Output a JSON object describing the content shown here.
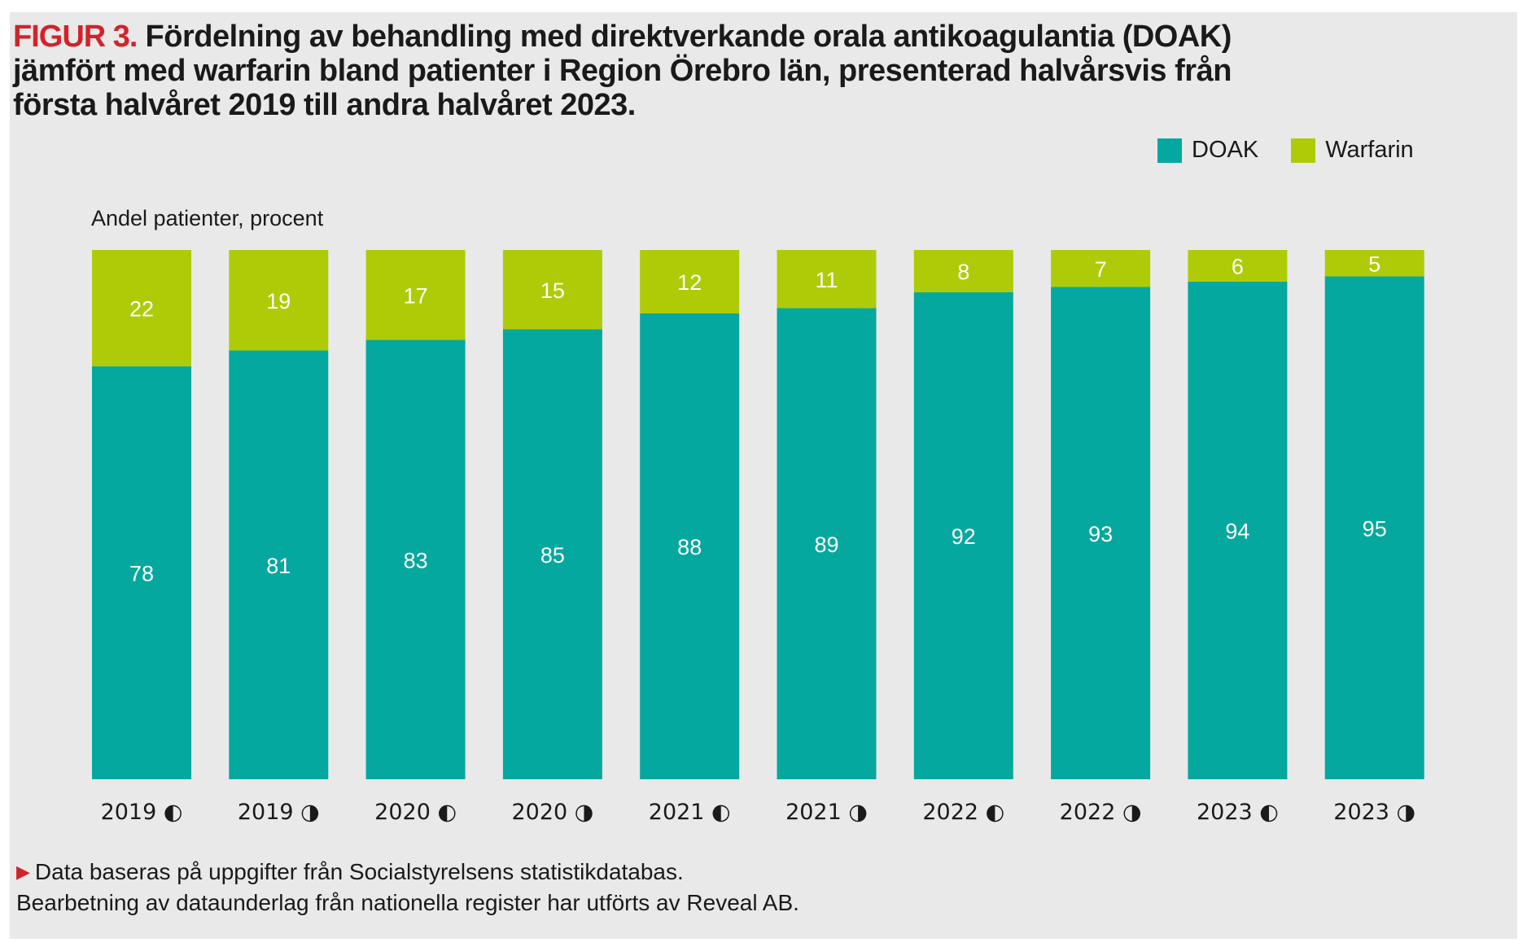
{
  "figure": {
    "label": "FIGUR 3.",
    "title": "Fördelning av behandling med direktverkande orala antikoagulantia (DOAK) jämfört med warfarin bland patienter i Region Örebro län, presenterad halvårsvis från första halvåret 2019 till andra halvåret 2023."
  },
  "legend": {
    "doak": "DOAK",
    "warfarin": "Warfarin"
  },
  "colors": {
    "doak": "#05a89e",
    "warfarin": "#afcb08",
    "label_inside": "#ffffff",
    "axis_text": "#1a1a1a"
  },
  "chart_data": {
    "type": "bar",
    "stacked": true,
    "ylabel": "Andel patienter, procent",
    "ylim": [
      0,
      100
    ],
    "grid": false,
    "legend_position": "top-right",
    "categories": [
      "2019 ◐",
      "2019 ◑",
      "2020 ◐",
      "2020 ◑",
      "2021 ◐",
      "2021 ◑",
      "2022 ◐",
      "2022 ◑",
      "2023 ◐",
      "2023 ◑"
    ],
    "series": [
      {
        "name": "DOAK",
        "values": [
          78,
          81,
          83,
          85,
          88,
          89,
          92,
          93,
          94,
          95
        ]
      },
      {
        "name": "Warfarin",
        "values": [
          22,
          19,
          17,
          15,
          12,
          11,
          8,
          7,
          6,
          5
        ]
      }
    ]
  },
  "footnote": {
    "line1": "Data baseras på uppgifter från Socialstyrelsens statistikdatabas.",
    "line2": "Bearbetning av dataunderlag från nationella register har utförts av Reveal AB."
  }
}
